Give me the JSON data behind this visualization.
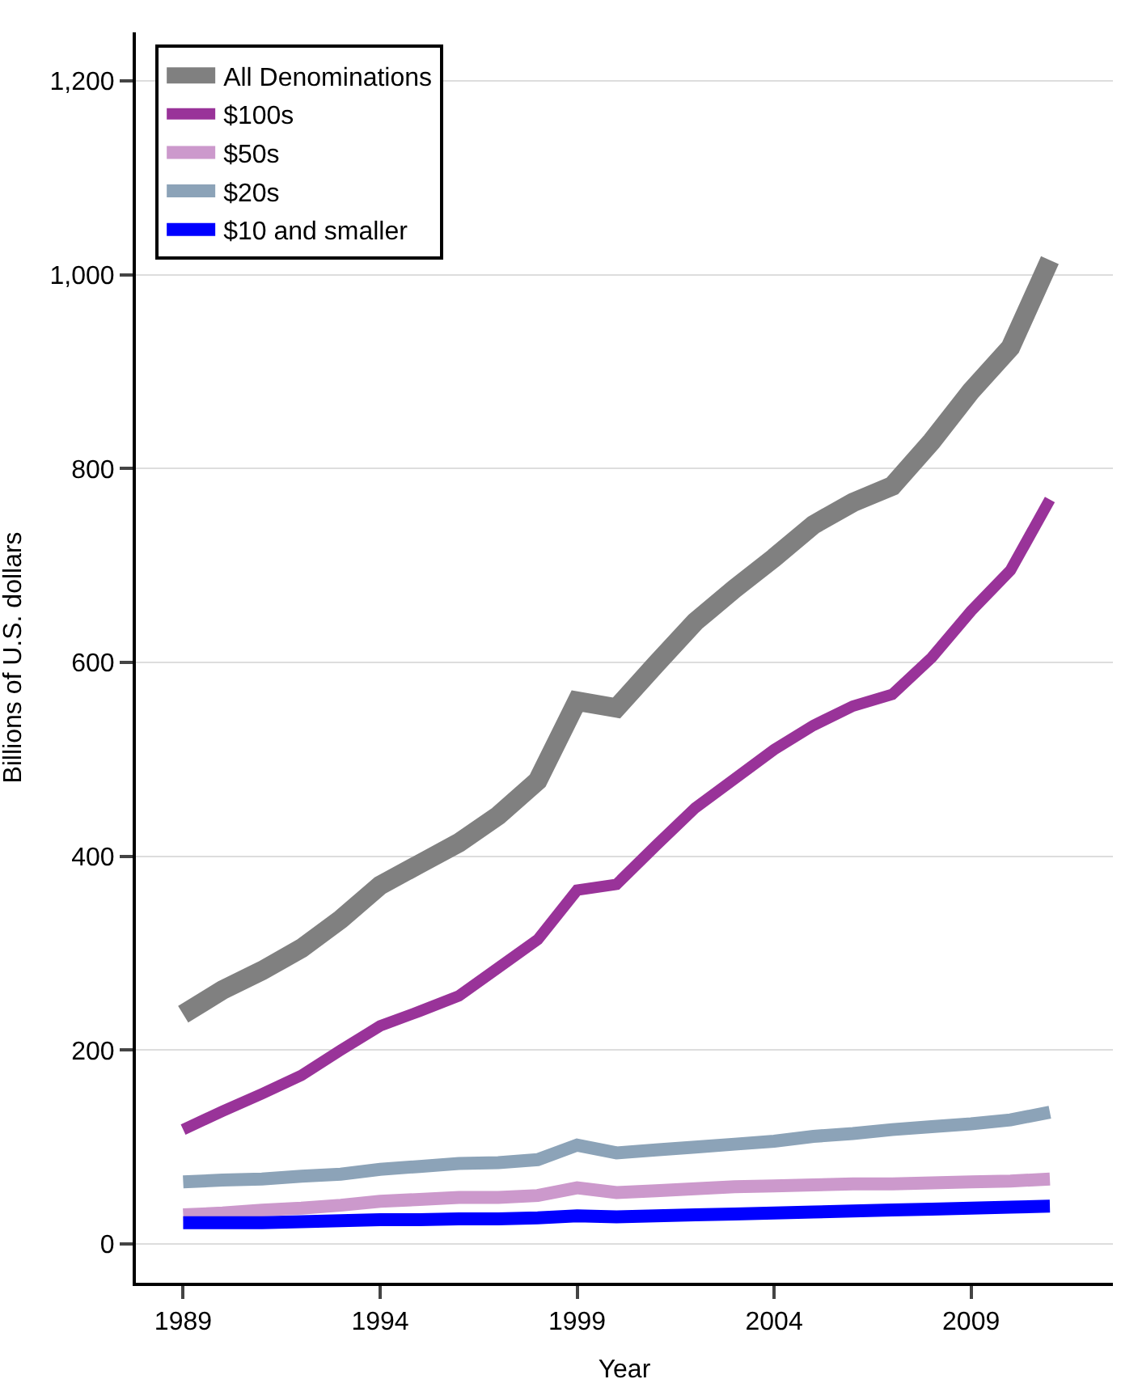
{
  "chart_data": {
    "type": "line",
    "xlabel": "Year",
    "ylabel": "Billions of U.S. dollars",
    "x": [
      1989,
      1990,
      1991,
      1992,
      1993,
      1994,
      1995,
      1996,
      1997,
      1998,
      1999,
      2000,
      2001,
      2002,
      2003,
      2004,
      2005,
      2006,
      2007,
      2008,
      2009,
      2010,
      2011
    ],
    "series": [
      {
        "name": "All Denominations",
        "color": "#808080",
        "values": [
          237,
          262,
          282,
          305,
          335,
          370,
          392,
          414,
          442,
          478,
          560,
          553,
          598,
          642,
          676,
          708,
          742,
          765,
          782,
          828,
          880,
          925,
          1015
        ]
      },
      {
        "name": "$100s",
        "color": "#993399",
        "values": [
          118,
          137,
          155,
          174,
          200,
          225,
          240,
          256,
          285,
          314,
          365,
          371,
          411,
          450,
          480,
          510,
          535,
          555,
          567,
          605,
          653,
          695,
          768
        ]
      },
      {
        "name": "$50s",
        "color": "#cc99cc",
        "values": [
          30,
          32,
          35,
          37,
          40,
          44,
          46,
          48,
          48,
          50,
          58,
          53,
          55,
          57,
          59,
          60,
          61,
          62,
          62,
          63,
          64,
          65,
          67
        ]
      },
      {
        "name": "$20s",
        "color": "#8ca3b8",
        "values": [
          64,
          66,
          67,
          70,
          72,
          77,
          80,
          83,
          84,
          87,
          102,
          94,
          97,
          100,
          103,
          106,
          111,
          114,
          118,
          121,
          124,
          128,
          136
        ]
      },
      {
        "name": "$10 and smaller",
        "color": "#0000ff",
        "values": [
          22,
          22,
          22,
          23,
          24,
          25,
          25,
          26,
          26,
          27,
          29,
          28,
          29,
          30,
          31,
          32,
          33,
          34,
          35,
          36,
          37,
          38,
          39
        ]
      }
    ],
    "xlim": [
      1987.8,
      2012.6
    ],
    "xticks": [
      1989,
      1994,
      1999,
      2004,
      2009
    ],
    "ylim": [
      -40,
      1250
    ],
    "yticks": [
      0,
      200,
      400,
      600,
      800,
      {
        "value": 1000,
        "label": "1,000"
      },
      {
        "value": 1200,
        "label": "1,200"
      }
    ],
    "grid": "y",
    "legend": "top left",
    "marker": "none",
    "line_style": "solid"
  }
}
